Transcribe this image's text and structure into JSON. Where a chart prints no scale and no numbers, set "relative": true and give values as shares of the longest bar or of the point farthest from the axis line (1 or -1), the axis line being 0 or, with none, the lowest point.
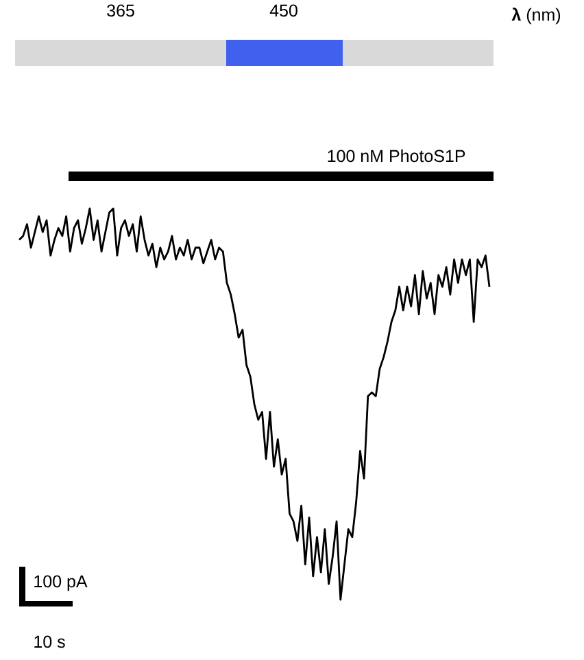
{
  "chart_data": {
    "type": "line",
    "relative": true,
    "marker": "none",
    "line_style": "solid",
    "categories": [
      null,
      null,
      null,
      null,
      null,
      null,
      null,
      null,
      null,
      null,
      null,
      null,
      null,
      null,
      null,
      null,
      null,
      null,
      null,
      null,
      null,
      null,
      null,
      null,
      null,
      null,
      null,
      null,
      null,
      null,
      null,
      null,
      null,
      null,
      null,
      null,
      null,
      null,
      null,
      null,
      null,
      null,
      null,
      null,
      null,
      null,
      null,
      null,
      null,
      null,
      null,
      null,
      null,
      null,
      null,
      null,
      null,
      null,
      null,
      null,
      null,
      null,
      null,
      null,
      null,
      null,
      null,
      null,
      null,
      null,
      null,
      null,
      null,
      null,
      null,
      null,
      null,
      null,
      null,
      null,
      null,
      null,
      null,
      null,
      null,
      null,
      null,
      null,
      null,
      null,
      null,
      null,
      null,
      null,
      null,
      null,
      null,
      null,
      null,
      null,
      null,
      null,
      null,
      null,
      null,
      null,
      null,
      null,
      null,
      null,
      null,
      null,
      null,
      null,
      null,
      null,
      null,
      null,
      null,
      null,
      null
    ],
    "series": [
      {
        "color": "#000000",
        "values": [
          0.92,
          0.93,
          0.96,
          0.9,
          0.94,
          0.98,
          0.94,
          0.97,
          0.88,
          0.92,
          0.95,
          0.93,
          0.98,
          0.89,
          0.95,
          0.97,
          0.91,
          0.95,
          1.0,
          0.92,
          0.97,
          0.89,
          0.94,
          0.99,
          1.0,
          0.88,
          0.95,
          0.97,
          0.93,
          0.96,
          0.89,
          0.98,
          0.92,
          0.88,
          0.91,
          0.85,
          0.9,
          0.87,
          0.89,
          0.93,
          0.87,
          0.9,
          0.88,
          0.92,
          0.87,
          0.9,
          0.9,
          0.86,
          0.89,
          0.92,
          0.87,
          0.9,
          0.89,
          0.81,
          0.78,
          0.73,
          0.67,
          0.69,
          0.6,
          0.57,
          0.5,
          0.46,
          0.48,
          0.36,
          0.48,
          0.34,
          0.41,
          0.32,
          0.36,
          0.22,
          0.2,
          0.15,
          0.24,
          0.09,
          0.21,
          0.06,
          0.16,
          0.07,
          0.18,
          0.04,
          0.11,
          0.2,
          0.0,
          0.09,
          0.18,
          0.16,
          0.25,
          0.38,
          0.31,
          0.52,
          0.53,
          0.52,
          0.59,
          0.62,
          0.66,
          0.71,
          0.74,
          0.8,
          0.74,
          0.8,
          0.75,
          0.83,
          0.73,
          0.84,
          0.77,
          0.81,
          0.73,
          0.83,
          0.8,
          0.85,
          0.78,
          0.87,
          0.81,
          0.87,
          0.83,
          0.87,
          0.71,
          0.87,
          0.85,
          0.88,
          0.8
        ]
      }
    ],
    "annotations": [
      "365",
      "450",
      "**λ** (nm)",
      "100 nM PhotoS1P",
      "100 pA",
      "10 s"
    ]
  }
}
